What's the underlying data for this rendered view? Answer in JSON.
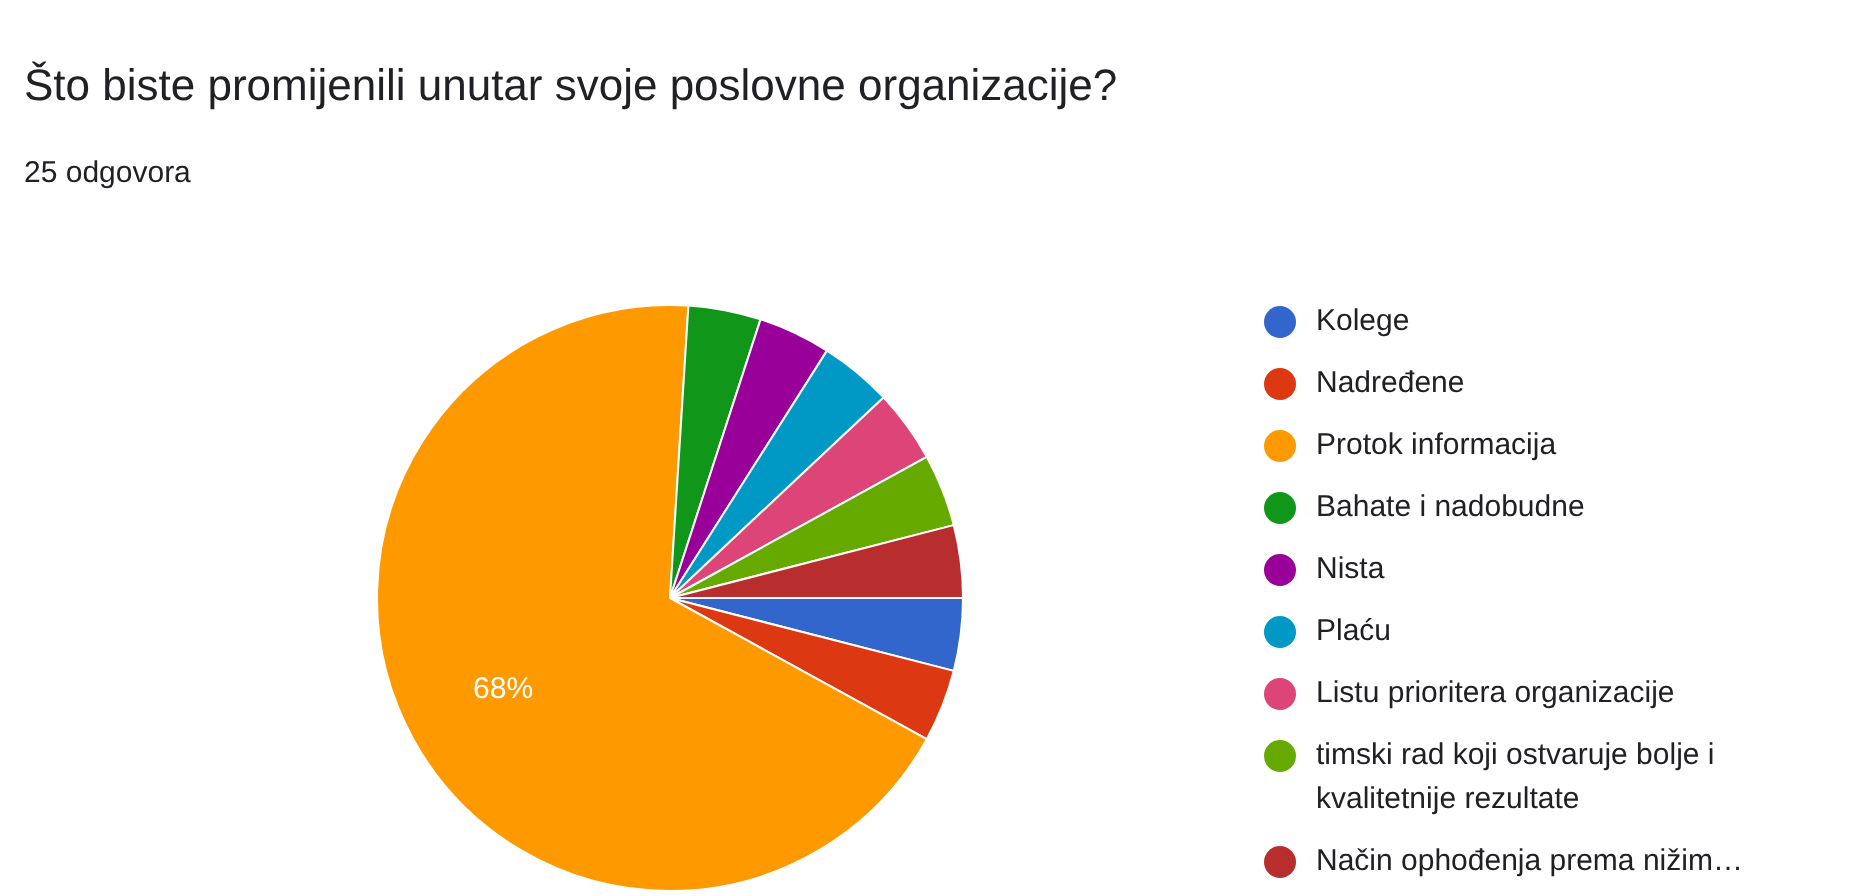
{
  "chart_data": {
    "type": "pie",
    "title": "Što biste promijenili unutar svoje poslovne organizacije?",
    "subtitle": "25 odgovora",
    "categories": [
      "Kolege",
      "Nadređene",
      "Protok informacija",
      "Bahate i nadobudne",
      "Nista",
      "Plaću",
      "Listu prioritera organizacije",
      "timski rad koji ostvaruje bolje i kvalitetnije rezultate",
      "Način ophođenja prema nižim…"
    ],
    "values": [
      4,
      4,
      68,
      4,
      4,
      4,
      4,
      4,
      4
    ],
    "colors": [
      "#3366cc",
      "#dc3912",
      "#ff9900",
      "#109618",
      "#990099",
      "#0099c6",
      "#dd4477",
      "#66aa00",
      "#b82e2e"
    ],
    "value_labels": [
      null,
      null,
      "68%",
      null,
      null,
      null,
      null,
      null,
      null
    ],
    "legend": "right"
  }
}
